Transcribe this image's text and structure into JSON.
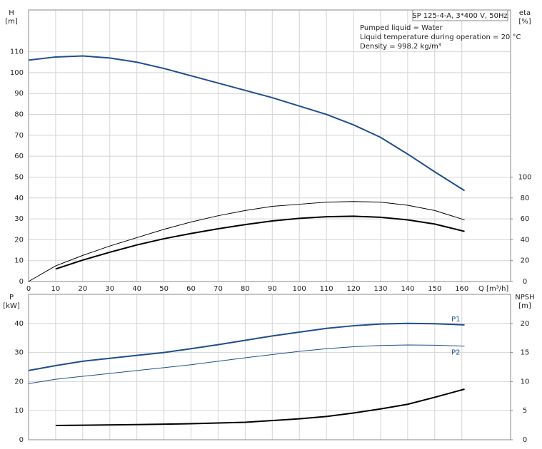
{
  "chart_data": [
    {
      "type": "line",
      "title": "SP 125-4-A, 3*400 V, 50Hz",
      "annotations": [
        "Pumped liquid = Water",
        "Liquid temperature during operation = 20 °C",
        "Density = 998.2 kg/m³"
      ],
      "ylabel": "H",
      "yunit": "[m]",
      "y2label": "eta",
      "y2unit": "[%]",
      "xlabel": "Q [m³/h]",
      "xlim": [
        0,
        178
      ],
      "xticks": [
        0,
        10,
        20,
        30,
        40,
        50,
        60,
        70,
        80,
        90,
        100,
        110,
        120,
        130,
        140,
        150,
        160
      ],
      "ylim": [
        0,
        130
      ],
      "yticks": [
        0,
        10,
        20,
        30,
        40,
        50,
        60,
        70,
        80,
        90,
        100,
        110
      ],
      "y2lim": [
        0,
        260
      ],
      "y2ticks": [
        0,
        20,
        40,
        60,
        80,
        100
      ],
      "grid": true,
      "series": [
        {
          "color": "#1f4e8c",
          "linewidth": 2,
          "x": [
            0,
            10,
            20,
            30,
            40,
            50,
            60,
            70,
            80,
            90,
            100,
            110,
            120,
            130,
            140,
            150,
            161
          ],
          "values": [
            106,
            107.5,
            108,
            107,
            105,
            102,
            98.5,
            95,
            91.5,
            88,
            84,
            80,
            75,
            69,
            61,
            52.5,
            43.5
          ]
        },
        {
          "color": "#000000",
          "linewidth": 1,
          "axis": "y2",
          "x": [
            0,
            10,
            20,
            30,
            40,
            50,
            60,
            70,
            80,
            90,
            100,
            110,
            120,
            130,
            140,
            150,
            161
          ],
          "values": [
            0,
            15,
            25,
            34,
            42,
            50,
            57,
            63,
            68,
            72,
            74,
            76,
            76.6,
            76,
            73,
            68,
            59
          ]
        },
        {
          "color": "#000000",
          "linewidth": 2,
          "axis": "y2",
          "x": [
            10,
            20,
            30,
            40,
            50,
            60,
            70,
            80,
            90,
            100,
            110,
            120,
            130,
            140,
            150,
            161
          ],
          "values": [
            12,
            20.5,
            28,
            35,
            41,
            46,
            50.5,
            54.5,
            58,
            60.5,
            62,
            62.5,
            61.5,
            59,
            55,
            48
          ]
        }
      ]
    },
    {
      "type": "line",
      "ylabel": "P",
      "yunit": "[kW]",
      "y2label": "NPSH",
      "y2unit": "[m]",
      "xlim": [
        0,
        178
      ],
      "ylim": [
        0,
        50
      ],
      "yticks": [
        0,
        10,
        20,
        30,
        40
      ],
      "y2lim": [
        0,
        25
      ],
      "y2ticks": [
        0,
        5,
        10,
        15,
        20
      ],
      "grid": true,
      "series": [
        {
          "name": "P1",
          "color": "#1f4e8c",
          "linewidth": 2,
          "x": [
            0,
            10,
            20,
            30,
            40,
            50,
            60,
            70,
            80,
            90,
            100,
            110,
            120,
            130,
            140,
            150,
            161
          ],
          "values": [
            23.8,
            25.5,
            27,
            28,
            29,
            30,
            31.3,
            32.7,
            34.2,
            35.7,
            37,
            38.3,
            39.2,
            39.8,
            40,
            39.9,
            39.5
          ]
        },
        {
          "name": "P2",
          "color": "#1f4e8c",
          "linewidth": 1,
          "x": [
            0,
            10,
            20,
            30,
            40,
            50,
            60,
            70,
            80,
            90,
            100,
            110,
            120,
            130,
            140,
            150,
            161
          ],
          "values": [
            19.3,
            20.8,
            21.8,
            22.8,
            23.8,
            24.8,
            25.8,
            27,
            28.2,
            29.3,
            30.4,
            31.3,
            32,
            32.4,
            32.6,
            32.5,
            32.2
          ]
        },
        {
          "color": "#000000",
          "linewidth": 2,
          "axis": "y2",
          "x": [
            10,
            20,
            40,
            60,
            80,
            100,
            110,
            120,
            130,
            140,
            150,
            161
          ],
          "values": [
            2.45,
            2.5,
            2.6,
            2.75,
            3.0,
            3.6,
            4.0,
            4.6,
            5.3,
            6.1,
            7.3,
            8.7
          ]
        }
      ]
    }
  ]
}
